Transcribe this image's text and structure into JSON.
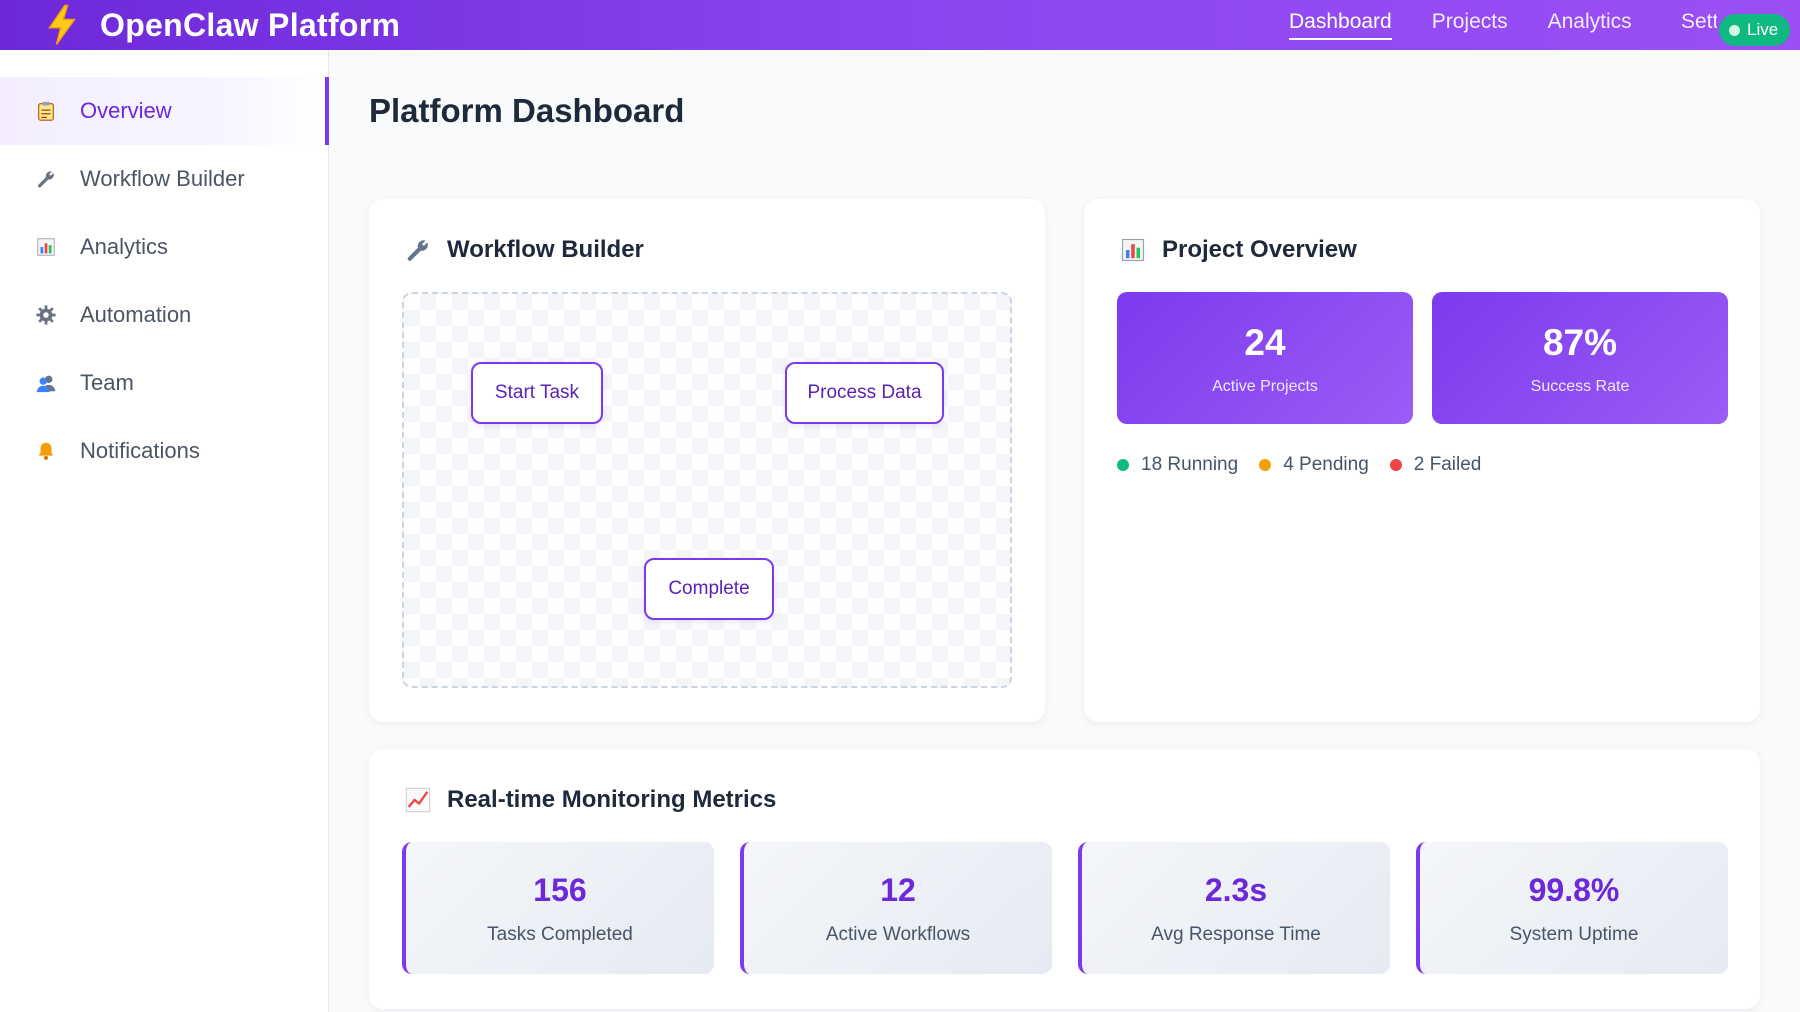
{
  "header": {
    "title": "OpenClaw Platform",
    "logo_icon": "lightning-bolt-icon",
    "nav": [
      {
        "label": "Dashboard",
        "active": true
      },
      {
        "label": "Projects",
        "active": false
      },
      {
        "label": "Analytics",
        "active": false
      },
      {
        "label": "Settings",
        "active": false
      }
    ],
    "nav_clipped_label": "Setti",
    "live_badge": "Live"
  },
  "sidebar": {
    "items": [
      {
        "label": "Overview",
        "icon": "clipboard-icon",
        "active": true
      },
      {
        "label": "Workflow Builder",
        "icon": "wrench-icon",
        "active": false
      },
      {
        "label": "Analytics",
        "icon": "bar-chart-icon",
        "active": false
      },
      {
        "label": "Automation",
        "icon": "gear-icon",
        "active": false
      },
      {
        "label": "Team",
        "icon": "users-icon",
        "active": false
      },
      {
        "label": "Notifications",
        "icon": "bell-icon",
        "active": false
      }
    ]
  },
  "main": {
    "title": "Platform Dashboard",
    "workflow": {
      "title": "Workflow Builder",
      "icon": "wrench-icon",
      "nodes": [
        {
          "label": "Start Task"
        },
        {
          "label": "Process Data"
        },
        {
          "label": "Complete"
        }
      ]
    },
    "project_overview": {
      "title": "Project Overview",
      "icon": "bar-chart-icon",
      "stats": [
        {
          "value": "24",
          "label": "Active Projects"
        },
        {
          "value": "87%",
          "label": "Success Rate"
        }
      ],
      "statuses": [
        {
          "label": "18 Running",
          "color": "#10b981"
        },
        {
          "label": "4 Pending",
          "color": "#f59e0b"
        },
        {
          "label": "2 Failed",
          "color": "#ef4444"
        }
      ]
    },
    "monitoring": {
      "title": "Real-time Monitoring Metrics",
      "icon": "trending-up-chart-icon",
      "metrics": [
        {
          "value": "156",
          "label": "Tasks Completed"
        },
        {
          "value": "12",
          "label": "Active Workflows"
        },
        {
          "value": "2.3s",
          "label": "Avg Response Time"
        },
        {
          "value": "99.8%",
          "label": "System Uptime"
        }
      ]
    }
  },
  "colors": {
    "accent": "#7c3aed",
    "header_gradient_start": "#6d28d9",
    "header_gradient_end": "#9b4ff5",
    "live_badge": "#10b981"
  }
}
